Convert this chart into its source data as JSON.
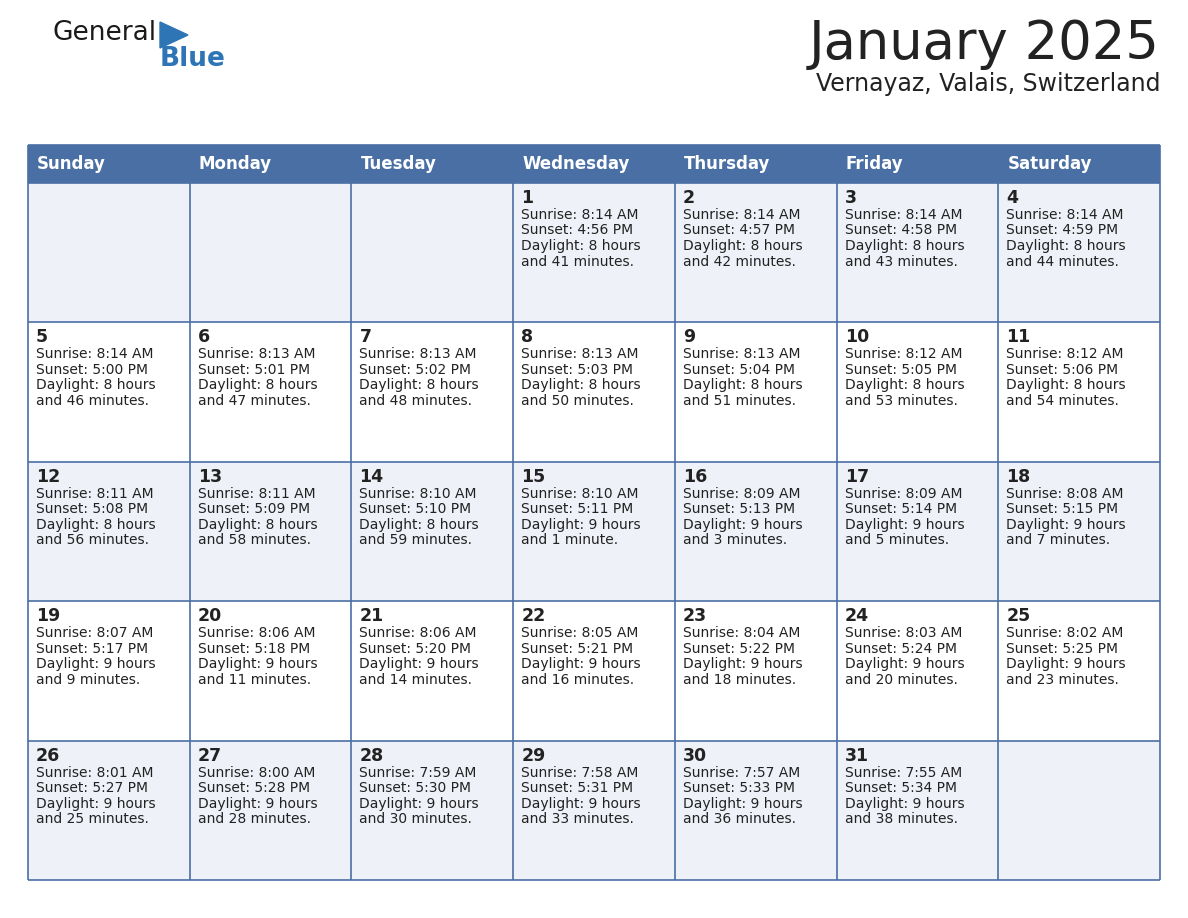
{
  "title": "January 2025",
  "subtitle": "Vernayaz, Valais, Switzerland",
  "days_of_week": [
    "Sunday",
    "Monday",
    "Tuesday",
    "Wednesday",
    "Thursday",
    "Friday",
    "Saturday"
  ],
  "header_bg": "#4A6FA5",
  "header_text": "#FFFFFF",
  "row_bg_even": "#EEF2F8",
  "row_bg_odd": "#FFFFFF",
  "border_color": "#4A6FA5",
  "text_color": "#222222",
  "calendar_data": [
    [
      {
        "day": "",
        "sunrise": "",
        "sunset": "",
        "daylight": ""
      },
      {
        "day": "",
        "sunrise": "",
        "sunset": "",
        "daylight": ""
      },
      {
        "day": "",
        "sunrise": "",
        "sunset": "",
        "daylight": ""
      },
      {
        "day": "1",
        "sunrise": "8:14 AM",
        "sunset": "4:56 PM",
        "daylight": "8 hours and 41 minutes."
      },
      {
        "day": "2",
        "sunrise": "8:14 AM",
        "sunset": "4:57 PM",
        "daylight": "8 hours and 42 minutes."
      },
      {
        "day": "3",
        "sunrise": "8:14 AM",
        "sunset": "4:58 PM",
        "daylight": "8 hours and 43 minutes."
      },
      {
        "day": "4",
        "sunrise": "8:14 AM",
        "sunset": "4:59 PM",
        "daylight": "8 hours and 44 minutes."
      }
    ],
    [
      {
        "day": "5",
        "sunrise": "8:14 AM",
        "sunset": "5:00 PM",
        "daylight": "8 hours and 46 minutes."
      },
      {
        "day": "6",
        "sunrise": "8:13 AM",
        "sunset": "5:01 PM",
        "daylight": "8 hours and 47 minutes."
      },
      {
        "day": "7",
        "sunrise": "8:13 AM",
        "sunset": "5:02 PM",
        "daylight": "8 hours and 48 minutes."
      },
      {
        "day": "8",
        "sunrise": "8:13 AM",
        "sunset": "5:03 PM",
        "daylight": "8 hours and 50 minutes."
      },
      {
        "day": "9",
        "sunrise": "8:13 AM",
        "sunset": "5:04 PM",
        "daylight": "8 hours and 51 minutes."
      },
      {
        "day": "10",
        "sunrise": "8:12 AM",
        "sunset": "5:05 PM",
        "daylight": "8 hours and 53 minutes."
      },
      {
        "day": "11",
        "sunrise": "8:12 AM",
        "sunset": "5:06 PM",
        "daylight": "8 hours and 54 minutes."
      }
    ],
    [
      {
        "day": "12",
        "sunrise": "8:11 AM",
        "sunset": "5:08 PM",
        "daylight": "8 hours and 56 minutes."
      },
      {
        "day": "13",
        "sunrise": "8:11 AM",
        "sunset": "5:09 PM",
        "daylight": "8 hours and 58 minutes."
      },
      {
        "day": "14",
        "sunrise": "8:10 AM",
        "sunset": "5:10 PM",
        "daylight": "8 hours and 59 minutes."
      },
      {
        "day": "15",
        "sunrise": "8:10 AM",
        "sunset": "5:11 PM",
        "daylight": "9 hours and 1 minute."
      },
      {
        "day": "16",
        "sunrise": "8:09 AM",
        "sunset": "5:13 PM",
        "daylight": "9 hours and 3 minutes."
      },
      {
        "day": "17",
        "sunrise": "8:09 AM",
        "sunset": "5:14 PM",
        "daylight": "9 hours and 5 minutes."
      },
      {
        "day": "18",
        "sunrise": "8:08 AM",
        "sunset": "5:15 PM",
        "daylight": "9 hours and 7 minutes."
      }
    ],
    [
      {
        "day": "19",
        "sunrise": "8:07 AM",
        "sunset": "5:17 PM",
        "daylight": "9 hours and 9 minutes."
      },
      {
        "day": "20",
        "sunrise": "8:06 AM",
        "sunset": "5:18 PM",
        "daylight": "9 hours and 11 minutes."
      },
      {
        "day": "21",
        "sunrise": "8:06 AM",
        "sunset": "5:20 PM",
        "daylight": "9 hours and 14 minutes."
      },
      {
        "day": "22",
        "sunrise": "8:05 AM",
        "sunset": "5:21 PM",
        "daylight": "9 hours and 16 minutes."
      },
      {
        "day": "23",
        "sunrise": "8:04 AM",
        "sunset": "5:22 PM",
        "daylight": "9 hours and 18 minutes."
      },
      {
        "day": "24",
        "sunrise": "8:03 AM",
        "sunset": "5:24 PM",
        "daylight": "9 hours and 20 minutes."
      },
      {
        "day": "25",
        "sunrise": "8:02 AM",
        "sunset": "5:25 PM",
        "daylight": "9 hours and 23 minutes."
      }
    ],
    [
      {
        "day": "26",
        "sunrise": "8:01 AM",
        "sunset": "5:27 PM",
        "daylight": "9 hours and 25 minutes."
      },
      {
        "day": "27",
        "sunrise": "8:00 AM",
        "sunset": "5:28 PM",
        "daylight": "9 hours and 28 minutes."
      },
      {
        "day": "28",
        "sunrise": "7:59 AM",
        "sunset": "5:30 PM",
        "daylight": "9 hours and 30 minutes."
      },
      {
        "day": "29",
        "sunrise": "7:58 AM",
        "sunset": "5:31 PM",
        "daylight": "9 hours and 33 minutes."
      },
      {
        "day": "30",
        "sunrise": "7:57 AM",
        "sunset": "5:33 PM",
        "daylight": "9 hours and 36 minutes."
      },
      {
        "day": "31",
        "sunrise": "7:55 AM",
        "sunset": "5:34 PM",
        "daylight": "9 hours and 38 minutes."
      },
      {
        "day": "",
        "sunrise": "",
        "sunset": "",
        "daylight": ""
      }
    ]
  ],
  "logo_color_general": "#1a1a1a",
  "logo_color_blue": "#2E75B6",
  "logo_triangle_color": "#2E75B6",
  "fig_width": 11.88,
  "fig_height": 9.18,
  "dpi": 100
}
